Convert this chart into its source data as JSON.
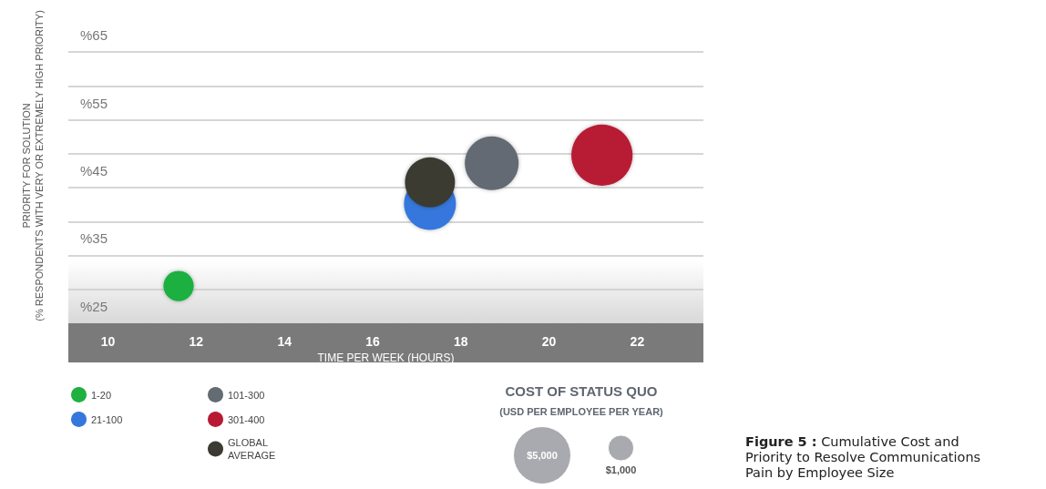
{
  "chart_data": {
    "type": "bubble",
    "ylabel": "PRIORITY FOR SOLUTION\n(% RESPONDENTS WITH VERY OR EXTREMELY HIGH PRIORITY)",
    "xlabel": "TIME PER WEEK (HOURS)",
    "legend_title": "COST OF STATUS QUO",
    "annotations": [
      "(USD PER EMPLOYEE PER YEAR)",
      "Figure 5 : Cumulative Cost and Priority to Resolve Communications Pain by Employee Size"
    ],
    "xlim": [
      9.1,
      23.5
    ],
    "xticks": [
      10,
      12,
      14,
      16,
      18,
      20,
      22
    ],
    "ylim": [
      22.5,
      69
    ],
    "yticks": [
      {
        "value": 25,
        "label": "%25"
      },
      {
        "value": 27.5,
        "label": null
      },
      {
        "value": 32.5,
        "label": null
      },
      {
        "value": 35,
        "label": "%35"
      },
      {
        "value": 37.5,
        "label": null
      },
      {
        "value": 42.5,
        "label": null
      },
      {
        "value": 45,
        "label": "%45"
      },
      {
        "value": 47.5,
        "label": null
      },
      {
        "value": 52.5,
        "label": null
      },
      {
        "value": 55,
        "label": "%55"
      },
      {
        "value": 57.5,
        "label": null
      },
      {
        "value": 62.5,
        "label": null
      },
      {
        "value": 65,
        "label": "%65"
      }
    ],
    "grid": "y",
    "legend": "bottom left",
    "marker": "circle",
    "size_legend": [
      {
        "value": 5000,
        "label": "$5,000"
      },
      {
        "value": 1000,
        "label": "$1,000"
      }
    ],
    "series": [
      {
        "name": "1-20",
        "color": "#1fb040",
        "x": [
          11.6
        ],
        "values": [
          28.0
        ],
        "sizes": [
          1400
        ]
      },
      {
        "name": "21-100",
        "color": "#3577dc",
        "x": [
          17.3
        ],
        "values": [
          40.1
        ],
        "sizes": [
          4100
        ]
      },
      {
        "name": "101-300",
        "color": "#636b73",
        "x": [
          18.7
        ],
        "values": [
          46.1
        ],
        "sizes": [
          4400
        ]
      },
      {
        "name": "301-400",
        "color": "#b81a35",
        "x": [
          21.2
        ],
        "values": [
          47.3
        ],
        "sizes": [
          5700
        ]
      },
      {
        "name": "GLOBAL AVERAGE",
        "color": "#3b3b33",
        "x": [
          17.3
        ],
        "values": [
          43.3
        ],
        "sizes": [
          3800
        ]
      }
    ]
  }
}
